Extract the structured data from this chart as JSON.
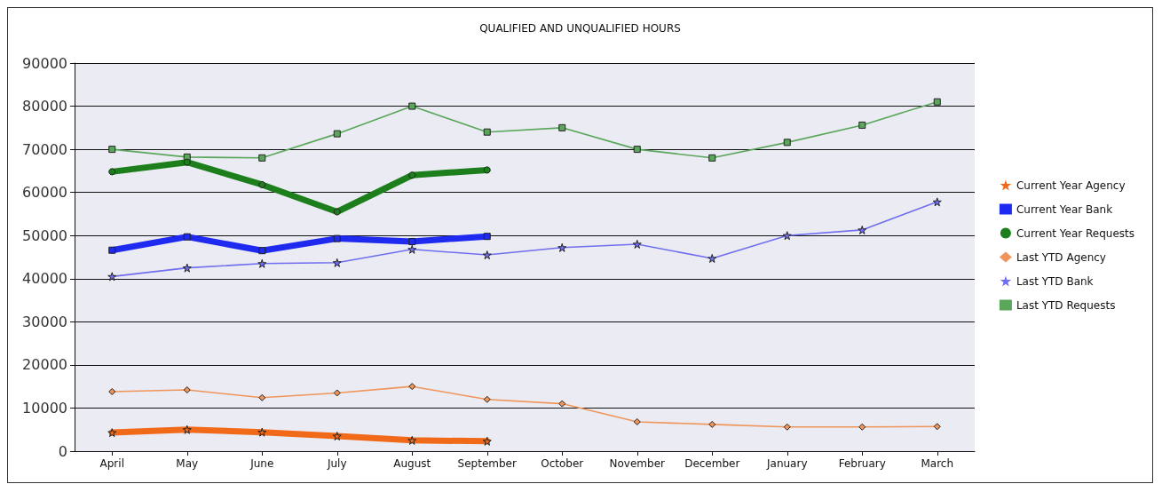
{
  "chart_data": {
    "type": "line",
    "title": "QUALIFIED AND UNQUALIFIED HOURS",
    "categories": [
      "April",
      "May",
      "June",
      "July",
      "August",
      "September",
      "October",
      "November",
      "December",
      "January",
      "February",
      "March"
    ],
    "ylim": [
      0,
      90000
    ],
    "yticks": [
      0,
      10000,
      20000,
      30000,
      40000,
      50000,
      60000,
      70000,
      80000,
      90000
    ],
    "grid": "y",
    "legend": "right",
    "series": [
      {
        "name": "Current Year Agency",
        "color": "#f06a1a",
        "marker": "star",
        "values": [
          4300,
          5000,
          4400,
          3500,
          2500,
          2300,
          null,
          null,
          null,
          null,
          null,
          null
        ]
      },
      {
        "name": "Current Year Bank",
        "color": "#1f2af0",
        "marker": "square",
        "values": [
          46600,
          49700,
          46500,
          49300,
          48600,
          49800,
          null,
          null,
          null,
          null,
          null,
          null
        ]
      },
      {
        "name": "Current Year Requests",
        "color": "#1c7f1c",
        "marker": "circle",
        "values": [
          64800,
          67000,
          61800,
          55500,
          64000,
          65200,
          null,
          null,
          null,
          null,
          null,
          null
        ]
      },
      {
        "name": "Last YTD Agency",
        "color": "#f0955a",
        "marker": "diamond",
        "values": [
          13800,
          14200,
          12400,
          13500,
          15000,
          12000,
          11000,
          6800,
          6200,
          5600,
          5600,
          5700
        ]
      },
      {
        "name": "Last YTD Bank",
        "color": "#6f6ff0",
        "marker": "star",
        "values": [
          40500,
          42500,
          43500,
          43700,
          46800,
          45500,
          47200,
          48000,
          44700,
          50000,
          51300,
          57800
        ]
      },
      {
        "name": "Last YTD Requests",
        "color": "#5aa65a",
        "marker": "square",
        "values": [
          70000,
          68200,
          68000,
          73600,
          80000,
          74000,
          75000,
          70000,
          68000,
          71600,
          75600,
          81000
        ]
      }
    ]
  }
}
